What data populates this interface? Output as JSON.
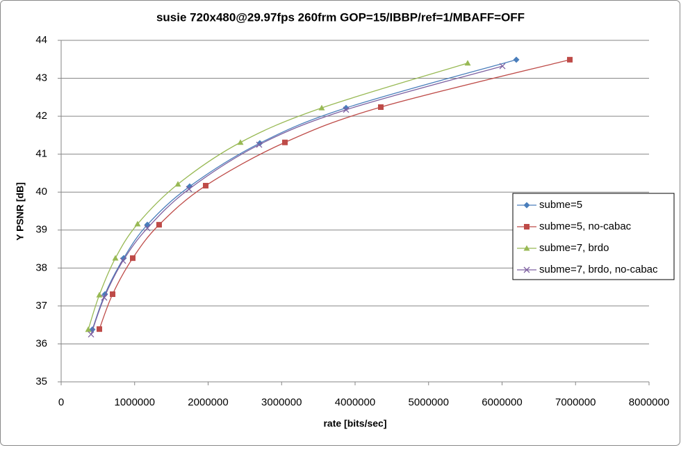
{
  "chart_data": {
    "type": "scatter",
    "smooth": true,
    "title": "susie 720x480@29.97fps  260frm GOP=15/IBBP/ref=1/MBAFF=OFF",
    "x_label": "rate [bits/sec]",
    "y_label": "Y PSNR [dB]",
    "xlim": [
      0,
      8000000
    ],
    "xticks": [
      0,
      1000000,
      2000000,
      3000000,
      4000000,
      5000000,
      6000000,
      7000000,
      8000000
    ],
    "ylim": [
      35,
      44
    ],
    "yticks": [
      35,
      36,
      37,
      38,
      39,
      40,
      41,
      42,
      43,
      44
    ],
    "grid": true,
    "legend": "right",
    "series": [
      {
        "name": "subme=5",
        "color": "#4a7ebb",
        "marker": "diamond",
        "x": [
          425000,
          596000,
          851000,
          1173000,
          1749000,
          2704000,
          3877000,
          6194000
        ],
        "values": [
          36.38,
          37.31,
          38.26,
          39.14,
          40.15,
          41.29,
          42.22,
          43.49
        ]
      },
      {
        "name": "subme=5, no-cabac",
        "color": "#be4b48",
        "marker": "square",
        "x": [
          520000,
          700000,
          974000,
          1333000,
          1967000,
          3045000,
          4350000,
          6922000
        ],
        "values": [
          36.39,
          37.31,
          38.26,
          39.14,
          40.17,
          41.31,
          42.24,
          43.49
        ]
      },
      {
        "name": "subme=7, brdo",
        "color": "#98b954",
        "marker": "triangle",
        "x": [
          369000,
          520000,
          738000,
          1040000,
          1589000,
          2440000,
          3546000,
          5532000
        ],
        "values": [
          36.38,
          37.29,
          38.26,
          39.16,
          40.21,
          41.31,
          42.22,
          43.4
        ]
      },
      {
        "name": "subme=7, brdo, no-cabac",
        "color": "#7d60a0",
        "marker": "x",
        "x": [
          407000,
          586000,
          842000,
          1173000,
          1740000,
          2695000,
          3877000,
          6005000
        ],
        "values": [
          36.25,
          37.22,
          38.19,
          39.05,
          40.08,
          41.25,
          42.17,
          43.32
        ]
      }
    ]
  }
}
